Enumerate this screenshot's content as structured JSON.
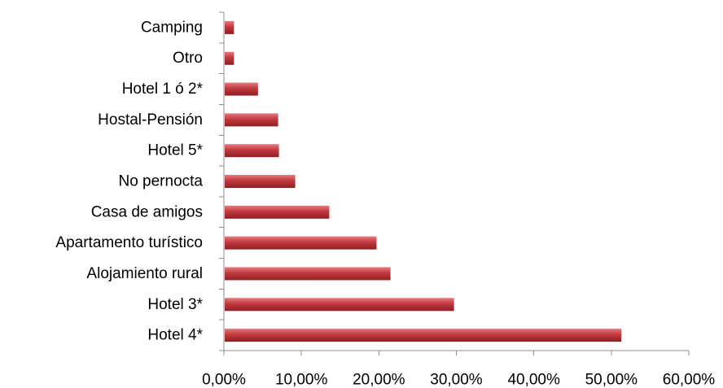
{
  "chart_data": {
    "type": "bar",
    "orientation": "horizontal",
    "title": "",
    "xlabel": "",
    "ylabel": "",
    "categories": [
      "Camping",
      "Otro",
      "Hotel 1 ó 2*",
      "Hostal-Pensión",
      "Hotel 5*",
      "No pernocta",
      "Casa de amigos",
      "Apartamento turístico",
      "Alojamiento rural",
      "Hotel 3*",
      "Hotel 4*"
    ],
    "values": [
      1.3,
      1.3,
      4.4,
      7.0,
      7.1,
      9.2,
      13.6,
      19.7,
      21.5,
      29.7,
      51.3
    ],
    "xlim": [
      0,
      60
    ],
    "x_ticks": [
      0,
      10,
      20,
      30,
      40,
      50,
      60
    ],
    "x_tick_labels": [
      "0,00%",
      "10,00%",
      "20,00%",
      "30,00%",
      "40,00%",
      "50,00%",
      "60,00%"
    ],
    "grid": false,
    "legend": "none",
    "colors": {
      "bar": "#c0393f",
      "bar_highlight": "#e77a7e",
      "bar_shadow": "#8f1f24",
      "axis": "#8c8c8c"
    }
  }
}
